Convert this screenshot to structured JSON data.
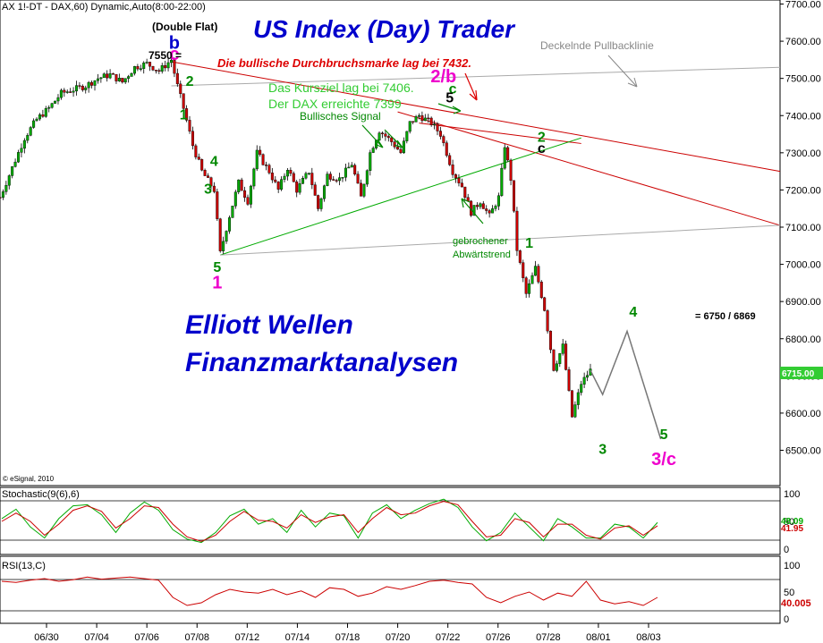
{
  "header": {
    "symbol_line": "AX 1!-DT - DAX,60) Dynamic,Auto(8:00-22:00)",
    "double_flat": "(Double Flat)",
    "title": "US Index (Day) Trader",
    "breakout_note": "Die bullische Durchbruchsmarke lag bei 7432.",
    "target_note_1": "Das Kursziel lag bei 7406.",
    "target_note_2": "Der DAX erreichte 7399",
    "bullish_signal": "Bullisches Signal",
    "pullback_line": "Deckelnde Pullbacklinie",
    "broken_trend_1": "gebrochener",
    "broken_trend_2": "Abwärtstrend",
    "level_7550": "7550 =",
    "wave4_target": "= 6750 / 6869",
    "watermark_1": "Elliott Wellen",
    "watermark_2": "Finanzmarktanalysen",
    "copyright": "© eSignal, 2010",
    "last_price": "6715.00"
  },
  "colors": {
    "up_candle": "#00aa00",
    "down_candle": "#cc0000",
    "title_blue": "#0000cc",
    "wave_green": "#008800",
    "wave_red": "#dd0000",
    "wave_magenta": "#ee00cc",
    "price_tag_green": "#33cc33"
  },
  "chart_data": [
    {
      "type": "candlestick",
      "title": "US Index (Day) Trader",
      "ylim": [
        6450,
        7700
      ],
      "y_ticks": [
        "7700.00",
        "7600.00",
        "7500.00",
        "7400.00",
        "7300.00",
        "7200.00",
        "7100.00",
        "7000.00",
        "6900.00",
        "6800.00",
        "6700.00",
        "6600.00",
        "6500.00"
      ],
      "x_ticks": [
        "06/30",
        "07/04",
        "07/06",
        "07/08",
        "07/12",
        "07/14",
        "07/18",
        "07/20",
        "07/22",
        "07/26",
        "07/28",
        "08/01",
        "08/03"
      ],
      "price_path": [
        [
          0,
          7180
        ],
        [
          4,
          7260
        ],
        [
          8,
          7340
        ],
        [
          12,
          7390
        ],
        [
          16,
          7420
        ],
        [
          20,
          7460
        ],
        [
          24,
          7470
        ],
        [
          28,
          7480
        ],
        [
          32,
          7500
        ],
        [
          36,
          7510
        ],
        [
          40,
          7490
        ],
        [
          44,
          7530
        ],
        [
          48,
          7540
        ],
        [
          52,
          7520
        ],
        [
          56,
          7550
        ],
        [
          58,
          7480
        ],
        [
          60,
          7420
        ],
        [
          63,
          7320
        ],
        [
          66,
          7250
        ],
        [
          70,
          7200
        ],
        [
          72,
          7030
        ],
        [
          75,
          7130
        ],
        [
          78,
          7220
        ],
        [
          81,
          7170
        ],
        [
          84,
          7300
        ],
        [
          88,
          7250
        ],
        [
          91,
          7200
        ],
        [
          94,
          7260
        ],
        [
          97,
          7200
        ],
        [
          101,
          7250
        ],
        [
          104,
          7150
        ],
        [
          107,
          7240
        ],
        [
          111,
          7230
        ],
        [
          115,
          7270
        ],
        [
          118,
          7180
        ],
        [
          121,
          7300
        ],
        [
          124,
          7360
        ],
        [
          128,
          7330
        ],
        [
          131,
          7300
        ],
        [
          134,
          7380
        ],
        [
          137,
          7400
        ],
        [
          141,
          7380
        ],
        [
          144,
          7350
        ],
        [
          148,
          7250
        ],
        [
          151,
          7210
        ],
        [
          154,
          7140
        ],
        [
          157,
          7170
        ],
        [
          160,
          7130
        ],
        [
          163,
          7180
        ],
        [
          165,
          7320
        ],
        [
          167,
          7230
        ],
        [
          169,
          7040
        ],
        [
          172,
          6920
        ],
        [
          175,
          6990
        ],
        [
          178,
          6880
        ],
        [
          181,
          6720
        ],
        [
          184,
          6780
        ],
        [
          187,
          6590
        ],
        [
          190,
          6680
        ],
        [
          193,
          6715
        ]
      ],
      "forecast_path": [
        [
          193,
          6715
        ],
        [
          197,
          6650
        ],
        [
          205,
          6820
        ],
        [
          216,
          6530
        ]
      ],
      "trendlines": [
        {
          "name": "Deckelnde Pullbacklinie",
          "from": [
            56,
            7480
          ],
          "to": [
            255,
            7530
          ]
        },
        {
          "name": "red_resistance_1",
          "from": [
            56,
            7545
          ],
          "to": [
            255,
            7250
          ]
        },
        {
          "name": "red_resistance_2",
          "from": [
            130,
            7410
          ],
          "to": [
            255,
            7105
          ]
        },
        {
          "name": "red_resistance_3",
          "from": [
            137,
            7380
          ],
          "to": [
            190,
            7325
          ]
        },
        {
          "name": "gebrochener Abwärtstrend",
          "from": [
            72,
            7025
          ],
          "to": [
            190,
            7340
          ]
        },
        {
          "name": "lower_support",
          "from": [
            72,
            7025
          ],
          "to": [
            255,
            7105
          ]
        }
      ],
      "wave_labels": [
        {
          "text": "b",
          "color": "blue",
          "x": 57,
          "y": 7580
        },
        {
          "text": "c",
          "color": "magenta",
          "x": 57,
          "y": 7550
        },
        {
          "text": "2",
          "color": "green",
          "x": 62,
          "y": 7480
        },
        {
          "text": "1",
          "color": "green",
          "x": 60,
          "y": 7390
        },
        {
          "text": "4",
          "color": "green",
          "x": 70,
          "y": 7265
        },
        {
          "text": "3",
          "color": "green",
          "x": 68,
          "y": 7190
        },
        {
          "text": "5",
          "color": "green",
          "x": 71,
          "y": 6980
        },
        {
          "text": "1",
          "color": "magenta",
          "x": 71,
          "y": 6935
        },
        {
          "text": "2/b",
          "color": "magenta",
          "x": 145,
          "y": 7490
        },
        {
          "text": "c",
          "color": "green",
          "x": 148,
          "y": 7460
        },
        {
          "text": "5",
          "color": "black",
          "x": 147,
          "y": 7435
        },
        {
          "text": "2",
          "color": "green",
          "x": 177,
          "y": 7330
        },
        {
          "text": "c",
          "color": "black",
          "x": 177,
          "y": 7300
        },
        {
          "text": "1",
          "color": "green",
          "x": 173,
          "y": 7045
        },
        {
          "text": "3",
          "color": "green",
          "x": 197,
          "y": 6490
        },
        {
          "text": "4",
          "color": "green",
          "x": 207,
          "y": 6860
        },
        {
          "text": "5",
          "color": "green",
          "x": 217,
          "y": 6530
        },
        {
          "text": "3/c",
          "color": "magenta",
          "x": 217,
          "y": 6460
        }
      ]
    },
    {
      "type": "line",
      "title": "Stochastic(9(6),6)",
      "ylim": [
        0,
        100
      ],
      "y_ticks": [
        "100",
        "50",
        "0"
      ],
      "last_values": [
        "48.09",
        "41.95"
      ],
      "series": [
        {
          "name": "%K",
          "color": "#00aa00",
          "values": [
            55,
            72,
            40,
            20,
            55,
            78,
            80,
            62,
            30,
            65,
            85,
            70,
            35,
            18,
            12,
            30,
            60,
            72,
            45,
            55,
            30,
            70,
            40,
            65,
            60,
            20,
            65,
            80,
            55,
            70,
            82,
            90,
            75,
            40,
            15,
            30,
            65,
            40,
            15,
            55,
            40,
            20,
            20,
            45,
            40,
            20,
            48
          ]
        },
        {
          "name": "%D",
          "color": "#cc0000",
          "values": [
            50,
            65,
            50,
            25,
            45,
            70,
            78,
            68,
            38,
            55,
            78,
            75,
            45,
            22,
            14,
            25,
            50,
            68,
            52,
            50,
            38,
            62,
            48,
            58,
            62,
            30,
            55,
            75,
            62,
            65,
            78,
            86,
            80,
            50,
            22,
            25,
            55,
            48,
            22,
            45,
            45,
            25,
            18,
            38,
            42,
            25,
            42
          ]
        }
      ]
    },
    {
      "type": "line",
      "title": "RSI(13,C)",
      "ylim": [
        0,
        100
      ],
      "y_ticks": [
        "100",
        "50",
        "0"
      ],
      "last_value": "40.005",
      "series": [
        {
          "name": "RSI",
          "color": "#cc0000",
          "values": [
            70,
            68,
            72,
            75,
            70,
            73,
            78,
            74,
            76,
            78,
            75,
            72,
            40,
            25,
            30,
            45,
            55,
            50,
            48,
            55,
            45,
            52,
            40,
            58,
            55,
            42,
            48,
            60,
            55,
            62,
            70,
            72,
            68,
            65,
            40,
            30,
            42,
            50,
            35,
            48,
            42,
            70,
            35,
            28,
            32,
            25,
            40
          ]
        }
      ]
    }
  ]
}
